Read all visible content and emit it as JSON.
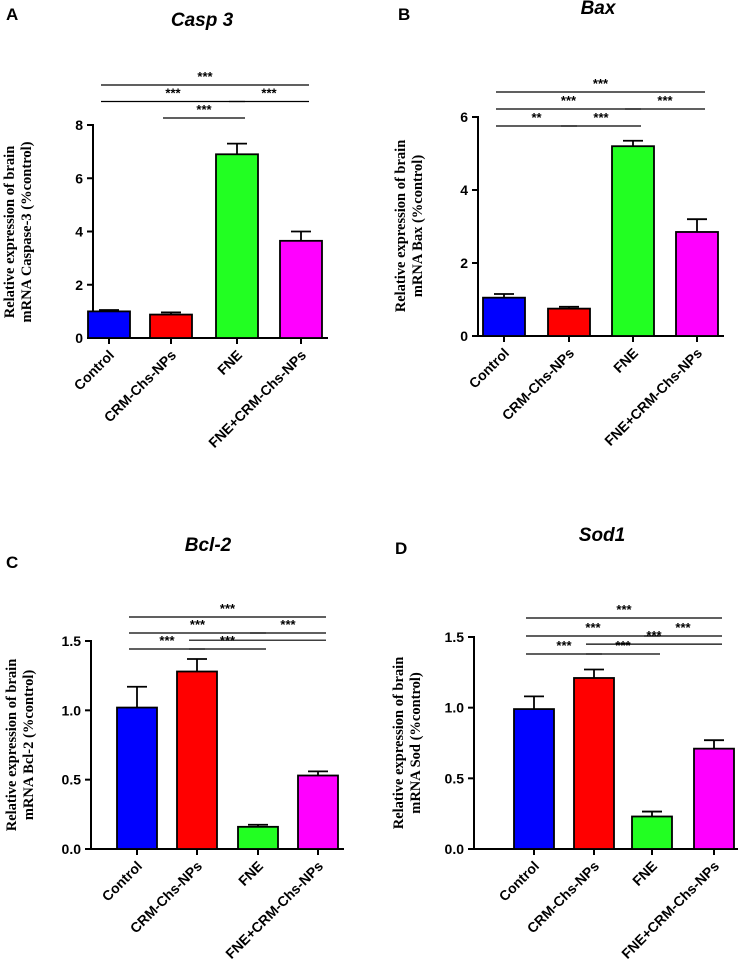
{
  "colors": {
    "Control": "#0000ff",
    "CRM-Chs-NPs": "#ff0000",
    "FNE": "#22ff22",
    "FNE+CRM-Chs-NPs": "#ff00ff"
  },
  "chart_data": [
    {
      "panel": "A",
      "type": "bar",
      "title": "Casp 3",
      "ylabel": [
        "Relative expression of brain",
        "mRNA Caspase-3 (%control)"
      ],
      "xlabel": "",
      "categories": [
        "Control",
        "CRM-Chs-NPs",
        "FNE",
        "FNE+CRM-Chs-NPs"
      ],
      "values": [
        1.0,
        0.88,
        6.9,
        3.65
      ],
      "errors": [
        0.05,
        0.08,
        0.4,
        0.35
      ],
      "ylim": [
        0,
        8
      ],
      "yticks": [
        0,
        2,
        4,
        6,
        8
      ],
      "ytick_labels": [
        "0",
        "2",
        "4",
        "6",
        "8"
      ],
      "comparisons": [
        {
          "from": 1,
          "to": 2,
          "label": "***",
          "level": 0
        },
        {
          "from": 0,
          "to": 2,
          "label": "***",
          "level": 1
        },
        {
          "from": 2,
          "to": 3,
          "label": "***",
          "level": 1
        },
        {
          "from": 0,
          "to": 3,
          "label": "***",
          "level": 2
        }
      ]
    },
    {
      "panel": "B",
      "type": "bar",
      "title": "Bax",
      "ylabel": [
        "Relative expression of brain",
        "mRNA Bax (%control)"
      ],
      "xlabel": "",
      "categories": [
        "Control",
        "CRM-Chs-NPs",
        "FNE",
        "FNE+CRM-Chs-NPs"
      ],
      "values": [
        1.05,
        0.75,
        5.2,
        2.85
      ],
      "errors": [
        0.1,
        0.05,
        0.15,
        0.35
      ],
      "ylim": [
        0,
        6
      ],
      "yticks": [
        0,
        2,
        4,
        6
      ],
      "ytick_labels": [
        "0",
        "2",
        "4",
        "6"
      ],
      "comparisons": [
        {
          "from": 0,
          "to": 1,
          "label": "**",
          "level": 0
        },
        {
          "from": 1,
          "to": 2,
          "label": "***",
          "level": 0
        },
        {
          "from": 0,
          "to": 2,
          "label": "***",
          "level": 1
        },
        {
          "from": 2,
          "to": 3,
          "label": "***",
          "level": 1
        },
        {
          "from": 0,
          "to": 3,
          "label": "***",
          "level": 2
        }
      ]
    },
    {
      "panel": "C",
      "type": "bar",
      "title": "Bcl-2",
      "ylabel": [
        "Relative expression of brain",
        "mRNA Bcl-2 (%control)"
      ],
      "xlabel": "",
      "categories": [
        "Control",
        "CRM-Chs-NPs",
        "FNE",
        "FNE+CRM-Chs-NPs"
      ],
      "values": [
        1.02,
        1.28,
        0.16,
        0.53
      ],
      "errors": [
        0.15,
        0.09,
        0.015,
        0.03
      ],
      "ylim": [
        0,
        1.5
      ],
      "yticks": [
        0,
        0.5,
        1.0,
        1.5
      ],
      "ytick_labels": [
        "0.0",
        "0.5",
        "1.0",
        "1.5"
      ],
      "comparisons": [
        {
          "from": 0,
          "to": 1,
          "label": "***",
          "level": 0
        },
        {
          "from": 1,
          "to": 2,
          "label": "***",
          "level": 0
        },
        {
          "from": 0,
          "to": 2,
          "label": "***",
          "level": 1
        },
        {
          "from": 2,
          "to": 3,
          "label": "***",
          "level": 1
        },
        {
          "from": 0,
          "to": 3,
          "label": "***",
          "level": 2
        },
        {
          "from": 1,
          "to": 3,
          "label": "",
          "level": 0.55
        }
      ]
    },
    {
      "panel": "D",
      "type": "bar",
      "title": "Sod1",
      "ylabel": [
        "Relative expression of brain",
        "mRNA Sod (%control)"
      ],
      "xlabel": "",
      "categories": [
        "Control",
        "CRM-Chs-NPs",
        "FNE",
        "FNE+CRM-Chs-NPs"
      ],
      "values": [
        0.99,
        1.21,
        0.23,
        0.71
      ],
      "errors": [
        0.09,
        0.06,
        0.035,
        0.06
      ],
      "ylim": [
        0,
        1.5
      ],
      "yticks": [
        0,
        0.5,
        1.0,
        1.5
      ],
      "ytick_labels": [
        "0.0",
        "0.5",
        "1.0",
        "1.5"
      ],
      "comparisons": [
        {
          "from": 0,
          "to": 1,
          "label": "***",
          "level": 0
        },
        {
          "from": 1,
          "to": 2,
          "label": "***",
          "level": 0
        },
        {
          "from": 0,
          "to": 2,
          "label": "***",
          "level": 1
        },
        {
          "from": 2,
          "to": 3,
          "label": "***",
          "level": 1
        },
        {
          "from": 1,
          "to": 3,
          "label": "***",
          "level": 0.55
        },
        {
          "from": 0,
          "to": 3,
          "label": "***",
          "level": 2
        }
      ]
    }
  ]
}
